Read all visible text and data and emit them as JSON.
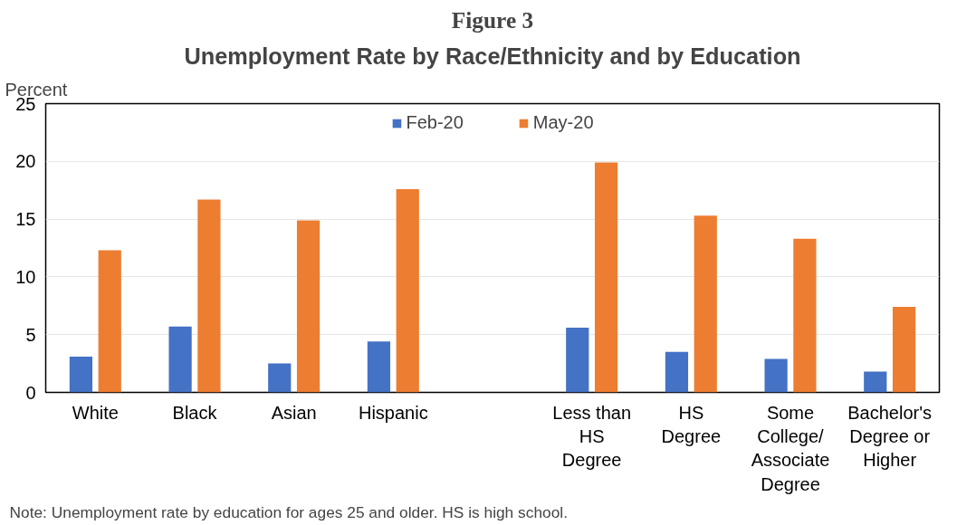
{
  "chart_data": {
    "type": "bar",
    "title": "Figure 3",
    "subtitle": "Unemployment Rate by Race/Ethnicity and by Education",
    "ylabel": "Percent",
    "categories": [
      "White",
      "Black",
      "Asian",
      "Hispanic",
      null,
      "Less than\nHS\nDegree",
      "HS\nDegree",
      "Some\nCollege/\nAssociate\nDegree",
      "Bachelor's\nDegree or\nHigher"
    ],
    "series": [
      {
        "name": "Feb-20",
        "color": "#4472c4",
        "values": [
          3.1,
          5.7,
          2.5,
          4.4,
          null,
          5.6,
          3.5,
          2.9,
          1.8
        ]
      },
      {
        "name": "May-20",
        "color": "#ed7d31",
        "values": [
          12.3,
          16.7,
          14.9,
          17.6,
          null,
          19.9,
          15.3,
          13.3,
          7.4
        ]
      }
    ],
    "ylim": [
      0,
      25
    ],
    "yticks": [
      0,
      5,
      10,
      15,
      20,
      25
    ],
    "grid": "y",
    "legend": "top",
    "annotations": [
      "Note: Unemployment rate by education for ages 25 and older. HS is high school."
    ]
  }
}
